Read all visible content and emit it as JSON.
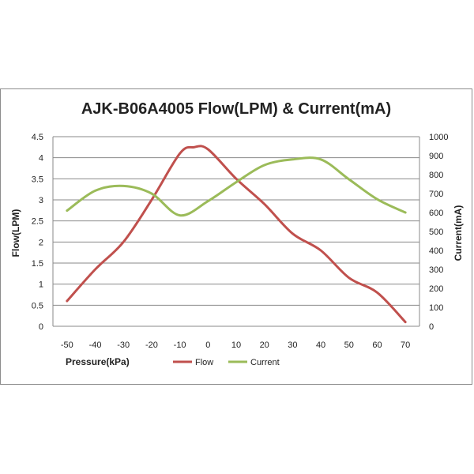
{
  "chart_data": {
    "type": "line",
    "title": "AJK-B06A4005 Flow(LPM) & Current(mA)",
    "xlabel": "Pressure(kPa)",
    "ylabel_left": "Flow(LPM)",
    "ylabel_right": "Current(mA)",
    "xlim": [
      -55,
      75
    ],
    "x_ticks": [
      -50,
      -40,
      -30,
      -20,
      -10,
      0,
      10,
      20,
      30,
      40,
      50,
      60,
      70
    ],
    "ylim_left": [
      0,
      4.5
    ],
    "y_ticks_left": [
      0,
      0.5,
      1,
      1.5,
      2,
      2.5,
      3,
      3.5,
      4,
      4.5
    ],
    "ylim_right": [
      0,
      1000
    ],
    "y_ticks_right": [
      0,
      100,
      200,
      300,
      400,
      500,
      600,
      700,
      800,
      900,
      1000
    ],
    "grid": true,
    "legend_position": "bottom",
    "series": [
      {
        "name": "Flow",
        "axis": "left",
        "color": "#c0504d",
        "x": [
          -50,
          -40,
          -30,
          -20,
          -10,
          -5,
          0,
          10,
          20,
          30,
          40,
          50,
          60,
          70
        ],
        "values": [
          0.6,
          1.35,
          2.0,
          3.0,
          4.1,
          4.25,
          4.2,
          3.5,
          2.9,
          2.2,
          1.8,
          1.15,
          0.8,
          0.1
        ]
      },
      {
        "name": "Current",
        "axis": "right",
        "color": "#9bbb59",
        "x": [
          -50,
          -40,
          -30,
          -20,
          -10,
          0,
          10,
          20,
          30,
          40,
          50,
          60,
          70
        ],
        "values": [
          610,
          715,
          740,
          700,
          585,
          660,
          760,
          850,
          880,
          880,
          775,
          670,
          600
        ]
      }
    ]
  }
}
